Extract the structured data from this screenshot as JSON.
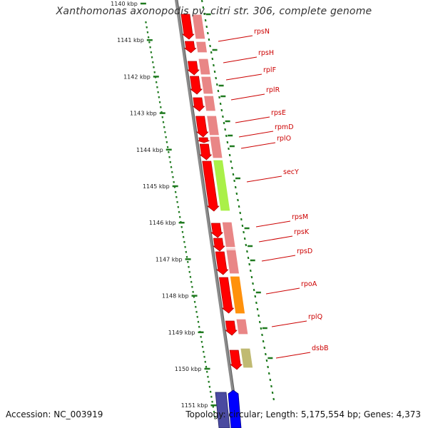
{
  "title": "Xanthomonas axonopodis pv. citri str. 306, complete genome",
  "accession": "Accession: NC_003919",
  "topology_info": "Topology: circular; Length: 5,175,554 bp; Genes: 4,373",
  "colors": {
    "backbone": "#808080",
    "gene_red": "#ff0000",
    "gene_red_dark": "#b20000",
    "ribosomal_pink": "#e88080",
    "secY_green": "#a6f040",
    "rpoA_orange": "#ff8c00",
    "dsbB_khaki": "#bdb76b",
    "blue": "#0000ff",
    "dark_blue": "#4a4aa0",
    "tick_green": "#1f7a1f",
    "label_red": "#cc0000"
  },
  "ticks": [
    {
      "label": "1140 kbp",
      "kbp": 1140
    },
    {
      "label": "1141 kbp",
      "kbp": 1141
    },
    {
      "label": "1142 kbp",
      "kbp": 1142
    },
    {
      "label": "1143 kbp",
      "kbp": 1143
    },
    {
      "label": "1144 kbp",
      "kbp": 1144
    },
    {
      "label": "1145 kbp",
      "kbp": 1145
    },
    {
      "label": "1146 kbp",
      "kbp": 1146
    },
    {
      "label": "1147 kbp",
      "kbp": 1147
    },
    {
      "label": "1148 kbp",
      "kbp": 1148
    },
    {
      "label": "1149 kbp",
      "kbp": 1149
    },
    {
      "label": "1150 kbp",
      "kbp": 1150
    },
    {
      "label": "1151 kbp",
      "kbp": 1151
    }
  ],
  "genes": [
    {
      "name": "rpsN",
      "color": "ribosomal_pink"
    },
    {
      "name": "rpsH",
      "color": "ribosomal_pink"
    },
    {
      "name": "rplF",
      "color": "ribosomal_pink"
    },
    {
      "name": "rplR",
      "color": "ribosomal_pink"
    },
    {
      "name": "rpsE",
      "color": "ribosomal_pink"
    },
    {
      "name": "rpmD",
      "color": "ribosomal_pink"
    },
    {
      "name": "rplO",
      "color": "ribosomal_pink"
    },
    {
      "name": "secY",
      "color": "secY_green"
    },
    {
      "name": "rpsM",
      "color": "ribosomal_pink"
    },
    {
      "name": "rpsK",
      "color": "ribosomal_pink"
    },
    {
      "name": "rpsD",
      "color": "ribosomal_pink"
    },
    {
      "name": "rpoA",
      "color": "rpoA_orange"
    },
    {
      "name": "rplQ",
      "color": "ribosomal_pink"
    },
    {
      "name": "dsbB",
      "color": "dsbB_khaki"
    }
  ]
}
